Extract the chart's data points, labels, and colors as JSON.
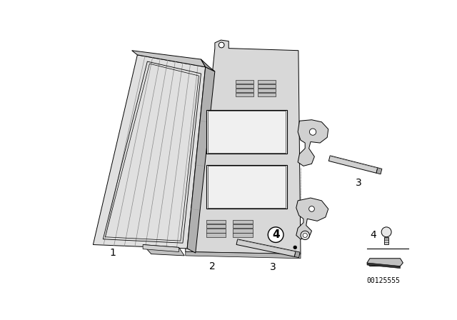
{
  "background_color": "#ffffff",
  "line_color": "#000000",
  "catalog_number": "00125555",
  "part_label_fontsize": 10,
  "legend_label_fontsize": 10
}
